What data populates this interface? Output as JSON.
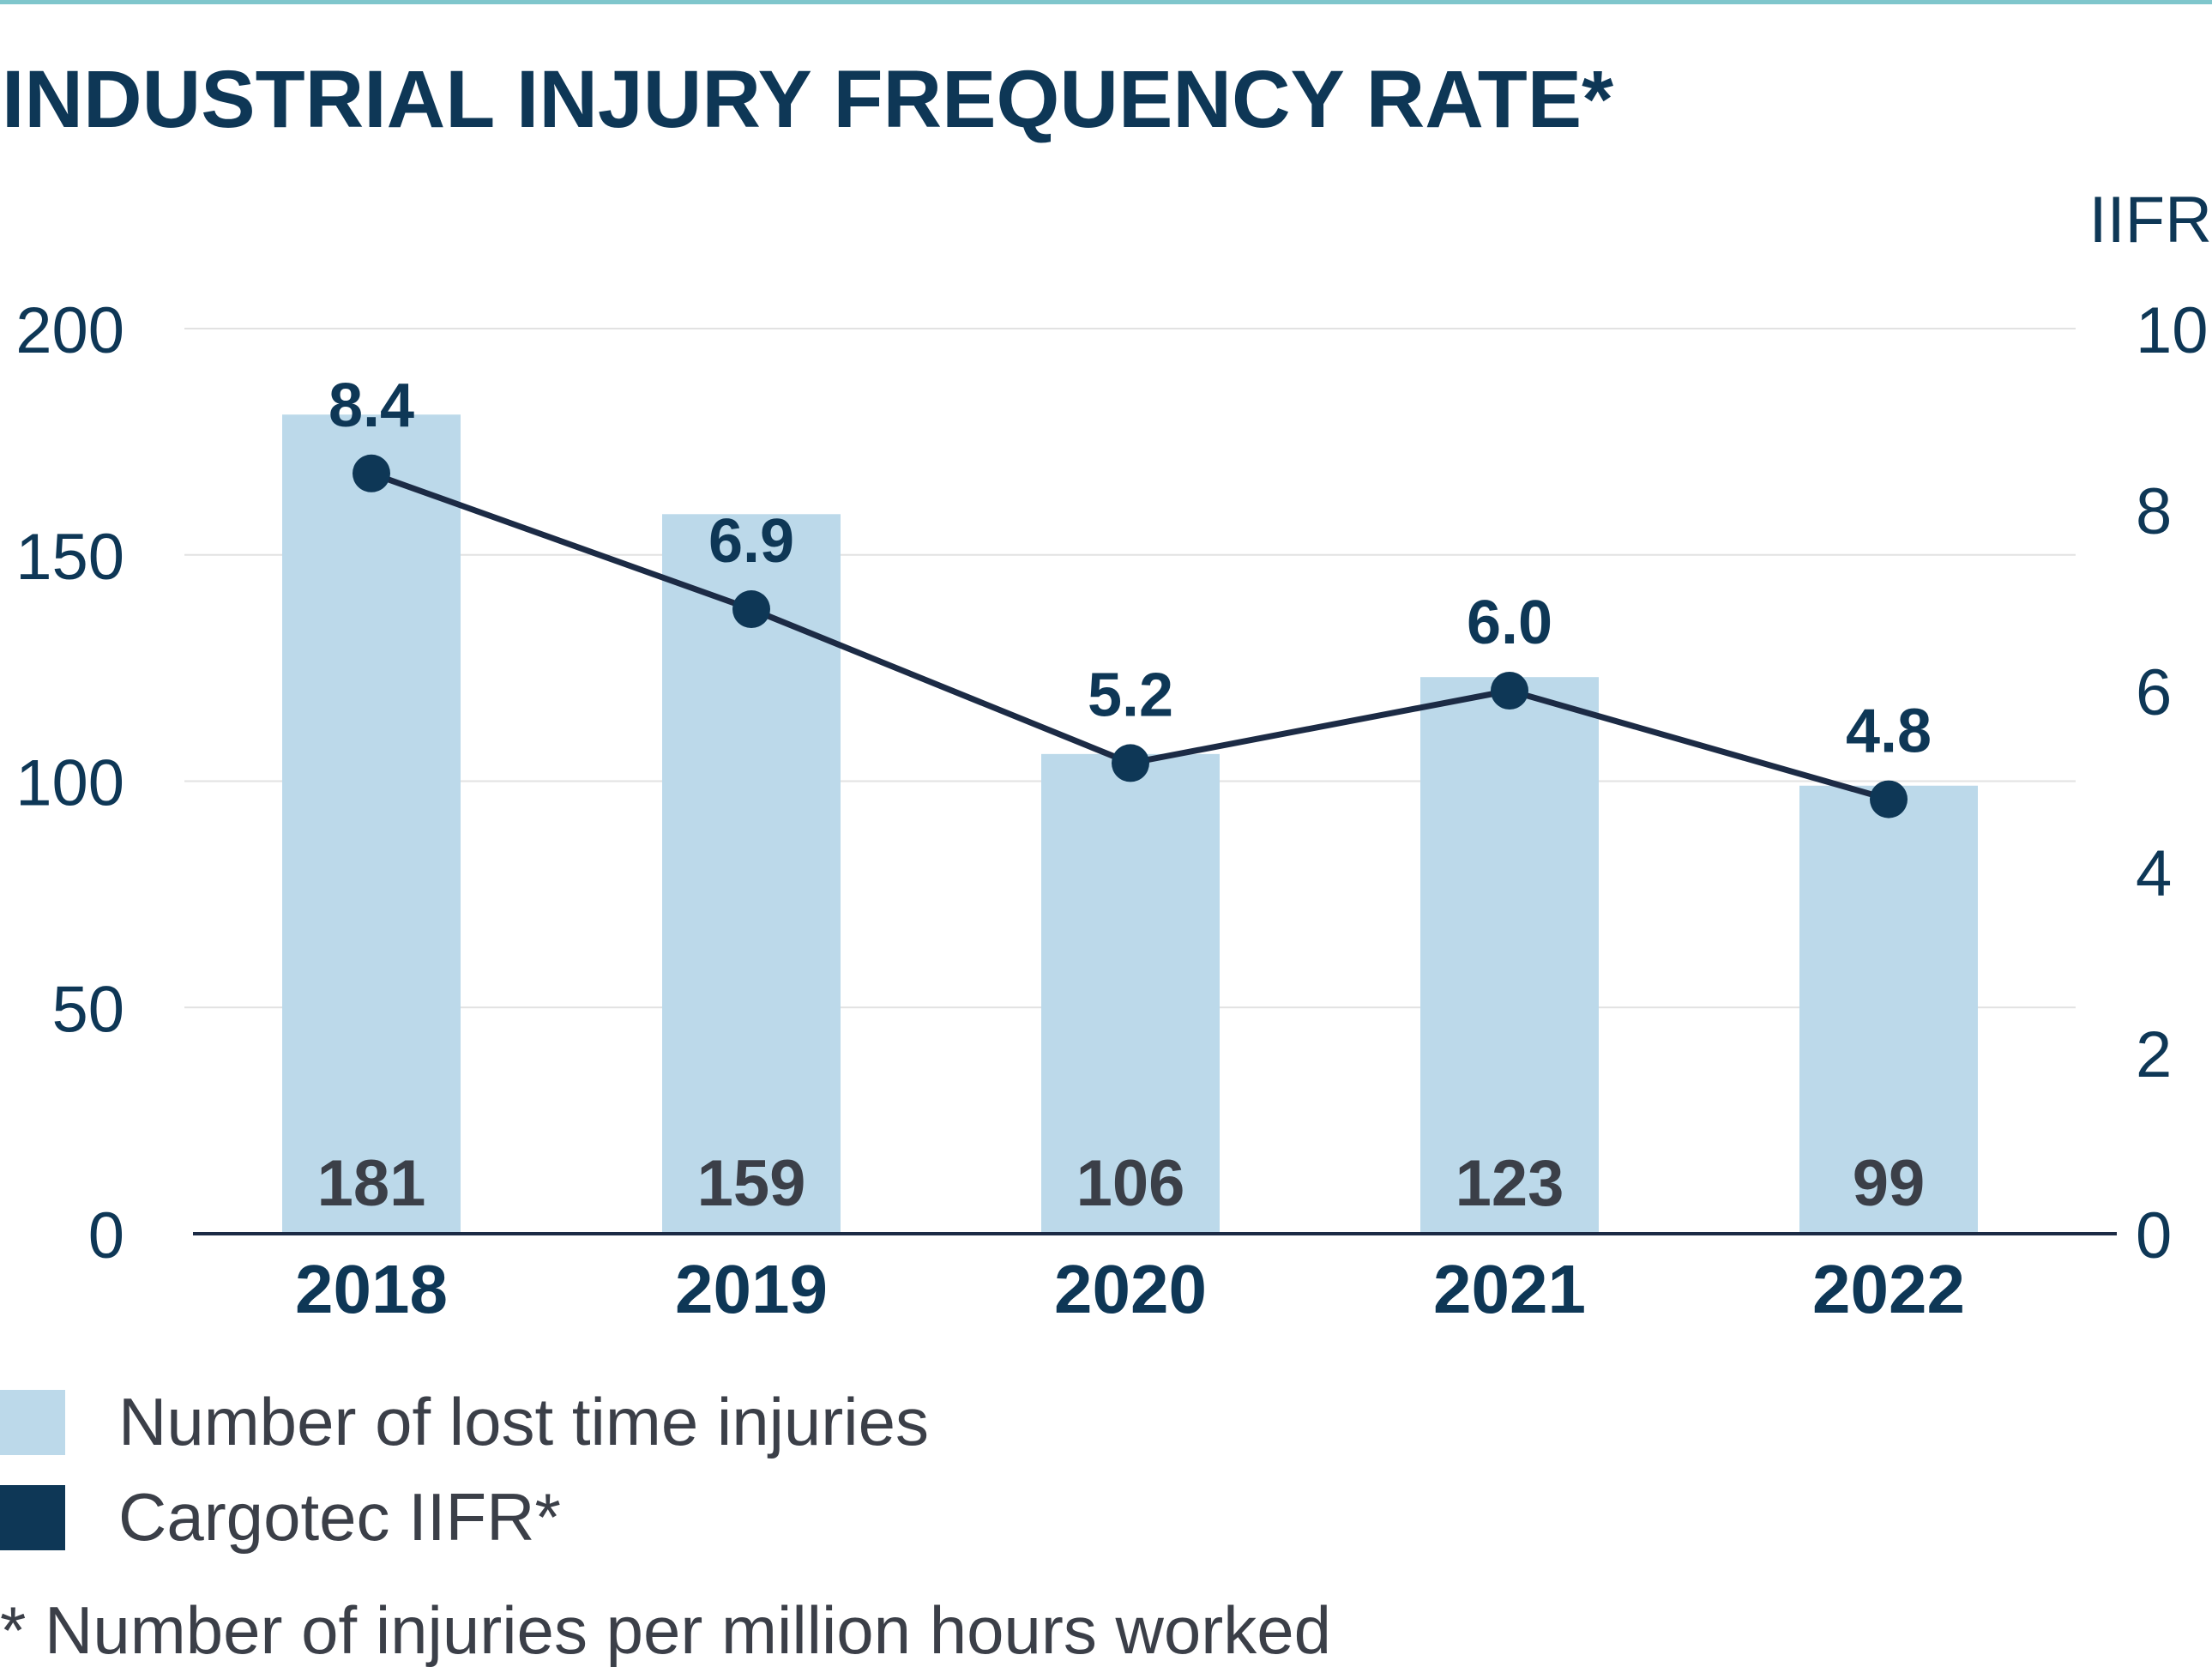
{
  "chart_data": {
    "type": "bar",
    "title": "INDUSTRIAL INJURY FREQUENCY RATE*",
    "categories": [
      "2018",
      "2019",
      "2020",
      "2021",
      "2022"
    ],
    "series": [
      {
        "name": "Number of lost time injuries",
        "type": "bar",
        "axis": "left",
        "values": [
          181,
          159,
          106,
          123,
          99
        ],
        "color": "#bcd9ea"
      },
      {
        "name": "Cargotec IIFR*",
        "type": "line",
        "axis": "right",
        "values": [
          8.4,
          6.9,
          5.2,
          6.0,
          4.8
        ],
        "color": "#0e3756"
      }
    ],
    "left_axis": {
      "ylim": [
        0,
        200
      ],
      "ticks": [
        "0",
        "50",
        "100",
        "150",
        "200"
      ]
    },
    "right_axis": {
      "label": "IIFR",
      "ylim": [
        0,
        10
      ],
      "ticks": [
        "0",
        "2",
        "4",
        "6",
        "8",
        "10"
      ]
    },
    "bar_labels": [
      "181",
      "159",
      "106",
      "123",
      "99"
    ],
    "line_labels": [
      "8.4",
      "6.9",
      "5.2",
      "6.0",
      "4.8"
    ],
    "grid": true,
    "legend_placement": "bottom-left",
    "footnote": "* Number of injuries per million hours worked"
  },
  "colors": {
    "bar": "#bcd9ea",
    "line": "#1c2b45",
    "marker": "#0e3756",
    "title": "#0e3756",
    "axis_text": "#0e3756",
    "grid": "#e2e2e2"
  }
}
